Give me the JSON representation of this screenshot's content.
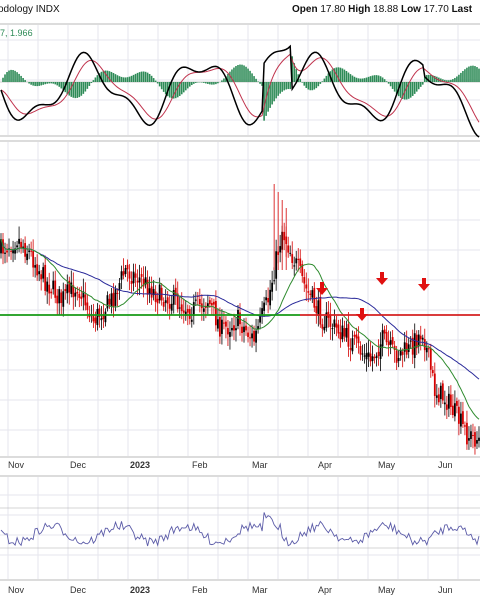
{
  "header": {
    "title_fragment": "odology INDX",
    "open_label": "Open",
    "open_value": "17.80",
    "high_label": "High",
    "high_value": "18.88",
    "low_label": "Low",
    "low_value": "17.70",
    "last_label": "Last"
  },
  "macd_legend": {
    "prefix": "7",
    "value": "1.966"
  },
  "x_labels": [
    "Nov",
    "Dec",
    "2023",
    "Feb",
    "Mar",
    "Apr",
    "May",
    "Jun"
  ],
  "colors": {
    "up_candle": "#000000",
    "down_candle": "#d40000",
    "ma_fast": "#2e8b2e",
    "ma_slow": "#2a2a9a",
    "support_line": "#169a16",
    "resistance_line": "#d42020",
    "arrow": "#e01010",
    "histogram": "#2e8b57",
    "macd_line": "#000000",
    "signal_line": "#c0334d",
    "rsi_line": "#5c5ca8"
  },
  "chart_data": [
    {
      "type": "candlestick",
      "panel": "price",
      "description_x": "daily candles Oct 2022 to Jun 2023",
      "x_labels": [
        "Nov",
        "Dec",
        "2023",
        "Feb",
        "Mar",
        "Apr",
        "May",
        "Jun"
      ],
      "ohlc_trend": [
        {
          "t": 0,
          "close": 250
        },
        {
          "t": 8,
          "close": 238
        },
        {
          "t": 15,
          "close": 255
        },
        {
          "t": 22,
          "close": 280
        },
        {
          "t": 30,
          "close": 300
        },
        {
          "t": 38,
          "close": 285
        },
        {
          "t": 46,
          "close": 320
        },
        {
          "t": 55,
          "close": 300
        },
        {
          "t": 62,
          "close": 270
        },
        {
          "t": 70,
          "close": 280
        },
        {
          "t": 78,
          "close": 295
        },
        {
          "t": 86,
          "close": 300
        },
        {
          "t": 95,
          "close": 310
        },
        {
          "t": 103,
          "close": 300
        },
        {
          "t": 110,
          "close": 330
        },
        {
          "t": 118,
          "close": 320
        },
        {
          "t": 126,
          "close": 340
        },
        {
          "t": 133,
          "close": 300
        },
        {
          "t": 140,
          "close": 230
        },
        {
          "t": 146,
          "close": 260
        },
        {
          "t": 152,
          "close": 290
        },
        {
          "t": 160,
          "close": 318
        },
        {
          "t": 168,
          "close": 330
        },
        {
          "t": 176,
          "close": 345
        },
        {
          "t": 184,
          "close": 360
        },
        {
          "t": 190,
          "close": 340
        },
        {
          "t": 196,
          "close": 355
        },
        {
          "t": 203,
          "close": 350
        },
        {
          "t": 210,
          "close": 330
        },
        {
          "t": 216,
          "close": 390
        },
        {
          "t": 222,
          "close": 400
        },
        {
          "t": 228,
          "close": 420
        },
        {
          "t": 232,
          "close": 435
        },
        {
          "t": 238,
          "close": 440
        }
      ],
      "horizontal_lines": [
        {
          "name": "support",
          "color": "#169a16"
        },
        {
          "name": "resistance",
          "color": "#d42020"
        }
      ],
      "arrows": 4
    },
    {
      "type": "line",
      "panel": "macd",
      "series": [
        {
          "values": "macd"
        },
        {
          "values": "signal"
        },
        {
          "values": "histogram"
        }
      ]
    },
    {
      "type": "line",
      "panel": "oscillator",
      "series": [
        {
          "values": "oscillator"
        }
      ]
    }
  ]
}
